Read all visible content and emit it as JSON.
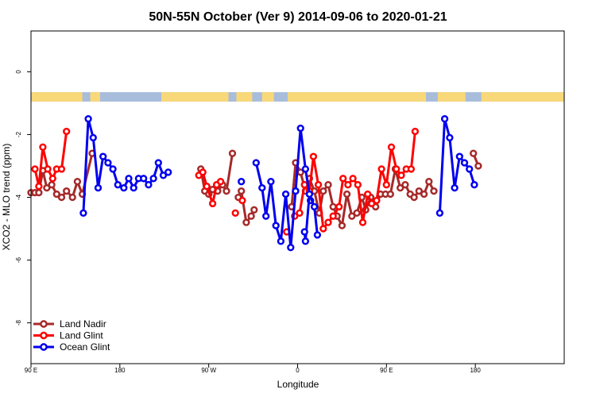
{
  "chart_data": {
    "type": "line",
    "title": "50N-55N October (Ver 9)   2014-09-06 to 2020-01-21",
    "xlabel": "Longitude",
    "ylabel": "XCO2 - MLO trend (ppm)",
    "xlim": [
      -90,
      180
    ],
    "ylim": [
      -9.3,
      1.3
    ],
    "x_ticks": [
      {
        "value": -90,
        "label": "90 E"
      },
      {
        "value": -45,
        "label": "180"
      },
      {
        "value": 0,
        "label": "90 W"
      },
      {
        "value": 45,
        "label": "0"
      },
      {
        "value": 90,
        "label": "90 E"
      },
      {
        "value": 135,
        "label": "180"
      }
    ],
    "y_ticks": [
      {
        "value": 0,
        "label": "0"
      },
      {
        "value": -2,
        "label": "-2"
      },
      {
        "value": -4,
        "label": "-4"
      },
      {
        "value": -6,
        "label": "-6"
      },
      {
        "value": -8,
        "label": "-8"
      }
    ],
    "land_ocean_band": {
      "y_top": -0.65,
      "y_bottom": -0.95,
      "ocean_color": "#a8bcdc",
      "land_color": "#f8d878"
    },
    "legend": {
      "position": "bottom-left"
    },
    "series": [
      {
        "name": "Land Nadir",
        "color": "#a52a2a",
        "segments": [
          [
            [
              -90,
              -3.85
            ],
            [
              -88,
              -3.85
            ],
            [
              -86,
              -3.85
            ],
            [
              -84,
              -3.15
            ],
            [
              -82,
              -3.7
            ],
            [
              -79.5,
              -3.6
            ],
            [
              -77,
              -3.9
            ],
            [
              -74.5,
              -4.0
            ],
            [
              -72,
              -3.8
            ],
            [
              -69,
              -4.0
            ],
            [
              -66.5,
              -3.5
            ],
            [
              -64,
              -3.9
            ],
            [
              -59,
              -2.6
            ]
          ],
          [
            [
              -4,
              -3.1
            ],
            [
              -2,
              -3.8
            ],
            [
              0,
              -3.9
            ],
            [
              2,
              -3.75
            ],
            [
              4.5,
              -3.8
            ],
            [
              7,
              -3.6
            ],
            [
              9,
              -3.8
            ],
            [
              12,
              -2.6
            ]
          ],
          [
            [
              15,
              -4.0
            ],
            [
              16.5,
              -3.8
            ],
            [
              19,
              -4.8
            ],
            [
              21.5,
              -4.6
            ],
            [
              23,
              -4.4
            ]
          ],
          [
            [
              42,
              -4.3
            ],
            [
              44,
              -2.9
            ],
            [
              46.5,
              -3.2
            ],
            [
              49,
              -3.8
            ],
            [
              51,
              -3.4
            ],
            [
              53.5,
              -3.8
            ],
            [
              56,
              -4.5
            ],
            [
              58,
              -3.8
            ],
            [
              60.5,
              -3.6
            ],
            [
              63,
              -4.3
            ],
            [
              65,
              -4.6
            ],
            [
              67.5,
              -4.9
            ],
            [
              70,
              -3.9
            ],
            [
              72.5,
              -4.6
            ],
            [
              75,
              -4.5
            ],
            [
              77.5,
              -4.0
            ],
            [
              79.5,
              -4.4
            ],
            [
              82,
              -4.0
            ],
            [
              84.5,
              -4.3
            ],
            [
              87,
              -3.9
            ],
            [
              89.5,
              -3.9
            ],
            [
              92,
              -3.9
            ],
            [
              94.5,
              -3.1
            ],
            [
              97,
              -3.7
            ],
            [
              99.5,
              -3.6
            ],
            [
              102,
              -3.9
            ],
            [
              104,
              -4.0
            ],
            [
              106.5,
              -3.8
            ],
            [
              109,
              -3.9
            ],
            [
              111.5,
              -3.5
            ],
            [
              114,
              -3.8
            ]
          ],
          [
            [
              134,
              -2.6
            ],
            [
              136.5,
              -3.0
            ]
          ]
        ]
      },
      {
        "name": "Land Glint",
        "color": "#ff0000",
        "segments": [
          [
            [
              -88,
              -3.1
            ],
            [
              -86,
              -3.65
            ],
            [
              -84,
              -2.4
            ],
            [
              -81.5,
              -3.1
            ],
            [
              -79,
              -3.4
            ],
            [
              -77,
              -3.1
            ],
            [
              -74.5,
              -3.1
            ],
            [
              -72,
              -1.9
            ]
          ],
          [
            [
              -5,
              -3.3
            ],
            [
              -3,
              -3.2
            ],
            [
              -1,
              -3.65
            ],
            [
              2,
              -4.2
            ],
            [
              4,
              -3.6
            ],
            [
              6,
              -3.5
            ]
          ],
          [
            [
              13.5,
              -4.5
            ]
          ],
          [
            [
              17,
              -4.1
            ]
          ],
          [
            [
              39.5,
              -5.1
            ]
          ],
          [
            [
              43.5,
              -4.6
            ],
            [
              46,
              -4.5
            ],
            [
              48.5,
              -3.6
            ],
            [
              51,
              -3.8
            ],
            [
              53,
              -2.7
            ],
            [
              55.5,
              -3.6
            ],
            [
              58,
              -5.0
            ],
            [
              60.5,
              -4.8
            ],
            [
              63,
              -4.6
            ],
            [
              66,
              -4.3
            ],
            [
              68,
              -3.4
            ],
            [
              70.5,
              -3.6
            ],
            [
              73,
              -3.4
            ],
            [
              75.5,
              -3.6
            ],
            [
              78,
              -4.8
            ],
            [
              80.5,
              -3.9
            ],
            [
              82.5,
              -4.2
            ],
            [
              85,
              -4.1
            ],
            [
              87.5,
              -3.1
            ],
            [
              90,
              -3.6
            ],
            [
              92.5,
              -2.4
            ],
            [
              95,
              -3.1
            ],
            [
              97.5,
              -3.3
            ],
            [
              100,
              -3.1
            ],
            [
              102.5,
              -3.1
            ],
            [
              104.5,
              -1.9
            ]
          ]
        ]
      },
      {
        "name": "Ocean Glint",
        "color": "#0000ee",
        "segments": [
          [
            [
              -63.5,
              -4.5
            ],
            [
              -61,
              -1.5
            ],
            [
              -58.5,
              -2.1
            ],
            [
              -56,
              -3.7
            ],
            [
              -53.5,
              -2.7
            ],
            [
              -51,
              -2.9
            ],
            [
              -48.5,
              -3.1
            ],
            [
              -46,
              -3.6
            ],
            [
              -43,
              -3.7
            ],
            [
              -40.5,
              -3.4
            ],
            [
              -38,
              -3.7
            ],
            [
              -35.5,
              -3.4
            ],
            [
              -33,
              -3.4
            ],
            [
              -30.5,
              -3.6
            ],
            [
              -28,
              -3.4
            ],
            [
              -25.5,
              -2.9
            ],
            [
              -23,
              -3.3
            ],
            [
              -20.5,
              -3.2
            ]
          ],
          [
            [
              16.5,
              -3.5
            ]
          ],
          [
            [
              24,
              -2.9
            ],
            [
              27,
              -3.7
            ],
            [
              29,
              -4.6
            ],
            [
              31.5,
              -3.5
            ],
            [
              34,
              -4.9
            ],
            [
              36.5,
              -5.4
            ],
            [
              39,
              -3.9
            ],
            [
              41.5,
              -5.6
            ],
            [
              44,
              -3.8
            ],
            [
              46.5,
              -1.8
            ],
            [
              49,
              -3.1
            ],
            [
              51.5,
              -4.1
            ]
          ],
          [
            [
              48.5,
              -5.1
            ],
            [
              49,
              -5.4
            ],
            [
              51,
              -3.9
            ],
            [
              53.5,
              -4.3
            ],
            [
              55,
              -5.2
            ]
          ],
          [
            [
              117,
              -4.5
            ],
            [
              119.5,
              -1.5
            ],
            [
              122,
              -2.1
            ],
            [
              124.5,
              -3.7
            ],
            [
              127,
              -2.7
            ],
            [
              129.5,
              -2.9
            ],
            [
              132,
              -3.1
            ],
            [
              134.5,
              -3.6
            ]
          ]
        ]
      }
    ]
  }
}
